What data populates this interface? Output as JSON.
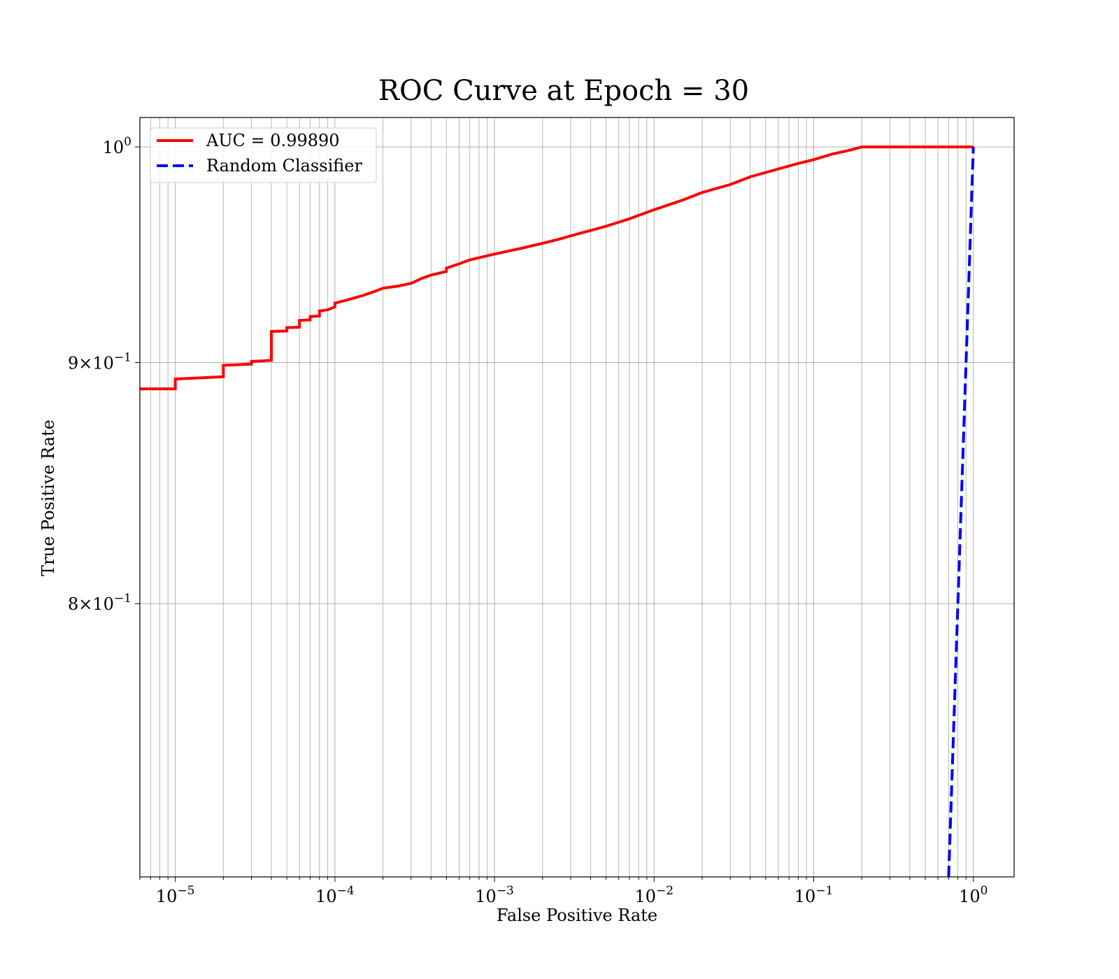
{
  "chart_data": {
    "type": "line",
    "title": "ROC Curve at Epoch = 30",
    "xlabel": "False Positive Rate",
    "ylabel": "True Positive Rate",
    "xscale": "log",
    "yscale": "log",
    "xlim": [
      6e-06,
      1.8
    ],
    "ylim": [
      0.7,
      1.0145
    ],
    "grid": true,
    "grid_minor": true,
    "legend_position": "upper-left",
    "x_ticks": [
      {
        "value": 1e-05,
        "base": "10",
        "exp": "−5"
      },
      {
        "value": 0.0001,
        "base": "10",
        "exp": "−4"
      },
      {
        "value": 0.001,
        "base": "10",
        "exp": "−3"
      },
      {
        "value": 0.01,
        "base": "10",
        "exp": "−2"
      },
      {
        "value": 0.1,
        "base": "10",
        "exp": "−1"
      },
      {
        "value": 1,
        "base": "10",
        "exp": "0"
      }
    ],
    "y_ticks": [
      {
        "value": 1.0,
        "prefix": "",
        "base": "10",
        "exp": "0"
      },
      {
        "value": 0.9,
        "prefix": "9×",
        "base": "10",
        "exp": "−1"
      },
      {
        "value": 0.8,
        "prefix": "8×",
        "base": "10",
        "exp": "−1"
      }
    ],
    "series": [
      {
        "name": "AUC = 0.99890",
        "color": "#ff0000",
        "dash": "solid",
        "points": [
          [
            6e-06,
            0.8885
          ],
          [
            1e-05,
            0.8885
          ],
          [
            1e-05,
            0.8928
          ],
          [
            2e-05,
            0.8938
          ],
          [
            2e-05,
            0.8988
          ],
          [
            3e-05,
            0.8993
          ],
          [
            3e-05,
            0.9005
          ],
          [
            4e-05,
            0.901
          ],
          [
            4e-05,
            0.9138
          ],
          [
            5e-05,
            0.914
          ],
          [
            5e-05,
            0.9155
          ],
          [
            6e-05,
            0.9157
          ],
          [
            6e-05,
            0.9187
          ],
          [
            7e-05,
            0.919
          ],
          [
            7e-05,
            0.9205
          ],
          [
            8e-05,
            0.9207
          ],
          [
            8e-05,
            0.923
          ],
          [
            9e-05,
            0.9235
          ],
          [
            0.0001,
            0.9248
          ],
          [
            0.0001,
            0.9265
          ],
          [
            0.00012,
            0.928
          ],
          [
            0.00015,
            0.93
          ],
          [
            0.00018,
            0.932
          ],
          [
            0.0002,
            0.9333
          ],
          [
            0.00025,
            0.9343
          ],
          [
            0.0003,
            0.9355
          ],
          [
            0.00035,
            0.9378
          ],
          [
            0.0004,
            0.9393
          ],
          [
            0.0005,
            0.941
          ],
          [
            0.0005,
            0.9425
          ],
          [
            0.0006,
            0.9445
          ],
          [
            0.0007,
            0.9463
          ],
          [
            0.0008,
            0.9473
          ],
          [
            0.001,
            0.949
          ],
          [
            0.0015,
            0.9518
          ],
          [
            0.002,
            0.954
          ],
          [
            0.0025,
            0.9558
          ],
          [
            0.003,
            0.9575
          ],
          [
            0.004,
            0.96
          ],
          [
            0.005,
            0.962
          ],
          [
            0.007,
            0.9655
          ],
          [
            0.01,
            0.9698
          ],
          [
            0.015,
            0.9743
          ],
          [
            0.02,
            0.978
          ],
          [
            0.03,
            0.9818
          ],
          [
            0.04,
            0.9855
          ],
          [
            0.06,
            0.9893
          ],
          [
            0.08,
            0.992
          ],
          [
            0.1,
            0.9938
          ],
          [
            0.13,
            0.9965
          ],
          [
            0.17,
            0.9985
          ],
          [
            0.2,
            1.0
          ],
          [
            1.0,
            1.0
          ]
        ]
      },
      {
        "name": "Random Classifier",
        "color": "#0000ff",
        "dash": "dashed",
        "points": [
          [
            0.7,
            0.7
          ],
          [
            1.0,
            1.0
          ]
        ]
      }
    ]
  }
}
